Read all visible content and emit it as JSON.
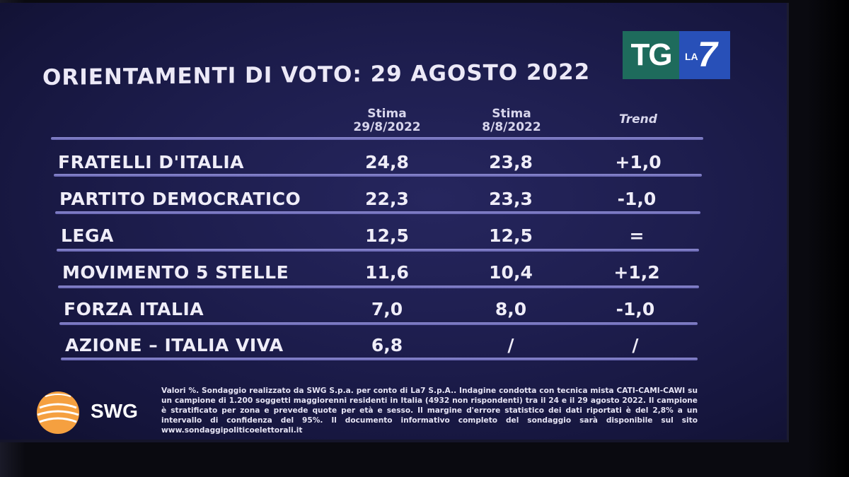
{
  "title": "ORIENTAMENTI DI VOTO: 29 AGOSTO 2022",
  "logo": {
    "tg": "TG",
    "la": "LA",
    "seven": "7"
  },
  "colors": {
    "screen_bg": "#1d1d4d",
    "divider": "#7c7ac4",
    "text": "#efedf8",
    "tg_green": "#1e6b5c",
    "la7_blue": "#2850b8",
    "swg_orange": "#f5a040"
  },
  "chart_data": {
    "type": "table",
    "title": "ORIENTAMENTI DI VOTO: 29 AGOSTO 2022",
    "columns": [
      {
        "line1": "Stima",
        "line2": "29/8/2022"
      },
      {
        "line1": "Stima",
        "line2": "8/8/2022"
      },
      {
        "line1": "Trend",
        "line2": ""
      }
    ],
    "rows": [
      {
        "party": "FRATELLI D'ITALIA",
        "current": "24,8",
        "previous": "23,8",
        "trend": "+1,0"
      },
      {
        "party": "PARTITO DEMOCRATICO",
        "current": "22,3",
        "previous": "23,3",
        "trend": "-1,0"
      },
      {
        "party": "LEGA",
        "current": "12,5",
        "previous": "12,5",
        "trend": "="
      },
      {
        "party": "MOVIMENTO 5 STELLE",
        "current": "11,6",
        "previous": "10,4",
        "trend": "+1,2"
      },
      {
        "party": "FORZA ITALIA",
        "current": "7,0",
        "previous": "8,0",
        "trend": "-1,0"
      },
      {
        "party": "AZIONE – ITALIA VIVA",
        "current": "6,8",
        "previous": "/",
        "trend": "/"
      }
    ]
  },
  "source": {
    "brand": "SWG",
    "footnote": "Valori %. Sondaggio realizzato da SWG S.p.a. per conto di La7 S.p.A.. Indagine condotta con tecnica mista CATI-CAMI-CAWI su un campione di 1.200 soggetti maggiorenni residenti in Italia (4932 non rispondenti) tra il 24 e il 29 agosto 2022. Il campione è stratificato per zona e prevede quote per età e sesso. Il margine d'errore statistico dei dati riportati è del 2,8% a un intervallo di confidenza del 95%. Il documento informativo completo del sondaggio sarà disponibile sul sito www.sondaggipoliticoelettorali.it"
  }
}
